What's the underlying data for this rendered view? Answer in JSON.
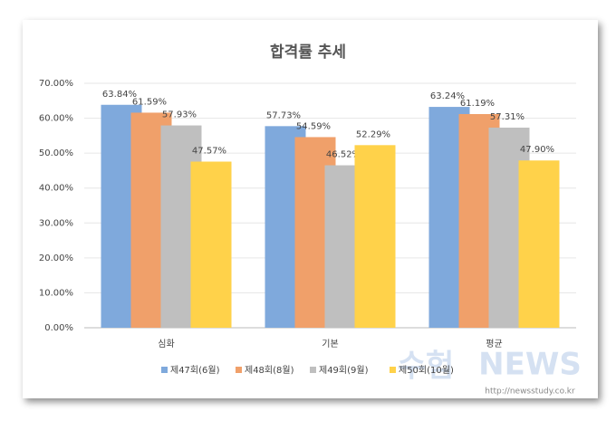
{
  "chart_data": {
    "type": "bar",
    "title": "합격률 추세",
    "categories": [
      "심화",
      "기본",
      "평균"
    ],
    "series": [
      {
        "name": "제47회(6월)",
        "color": "#7fa9dc",
        "values": [
          63.84,
          57.73,
          63.24
        ],
        "value_labels": [
          "63.84%",
          "57.73%",
          "63.24%"
        ]
      },
      {
        "name": "제48회(8월)",
        "color": "#f0a06a",
        "values": [
          61.59,
          54.59,
          61.19
        ],
        "value_labels": [
          "61.59%",
          "54.59%",
          "61.19%"
        ]
      },
      {
        "name": "제49회(9월)",
        "color": "#bfbfbf",
        "values": [
          57.93,
          46.52,
          57.31
        ],
        "value_labels": [
          "57.93%",
          "46.52%",
          "57.31%"
        ]
      },
      {
        "name": "제50회(10월)",
        "color": "#ffd24a",
        "values": [
          47.57,
          52.29,
          47.9
        ],
        "value_labels": [
          "47.57%",
          "52.29%",
          "47.90%"
        ]
      }
    ],
    "ylim": [
      0,
      70
    ],
    "yticks": [
      {
        "value": 0,
        "label": "0.00%"
      },
      {
        "value": 10,
        "label": "10.00%"
      },
      {
        "value": 20,
        "label": "20.00%"
      },
      {
        "value": 30,
        "label": "30.00%"
      },
      {
        "value": 40,
        "label": "40.00%"
      },
      {
        "value": 50,
        "label": "50.00%"
      },
      {
        "value": 60,
        "label": "60.00%"
      },
      {
        "value": 70,
        "label": "70.00%"
      }
    ],
    "grid": true,
    "legend": "bottom",
    "watermark": {
      "brand": "수험",
      "name": "NEWS",
      "url": "http://newsstudy.co.kr"
    }
  }
}
